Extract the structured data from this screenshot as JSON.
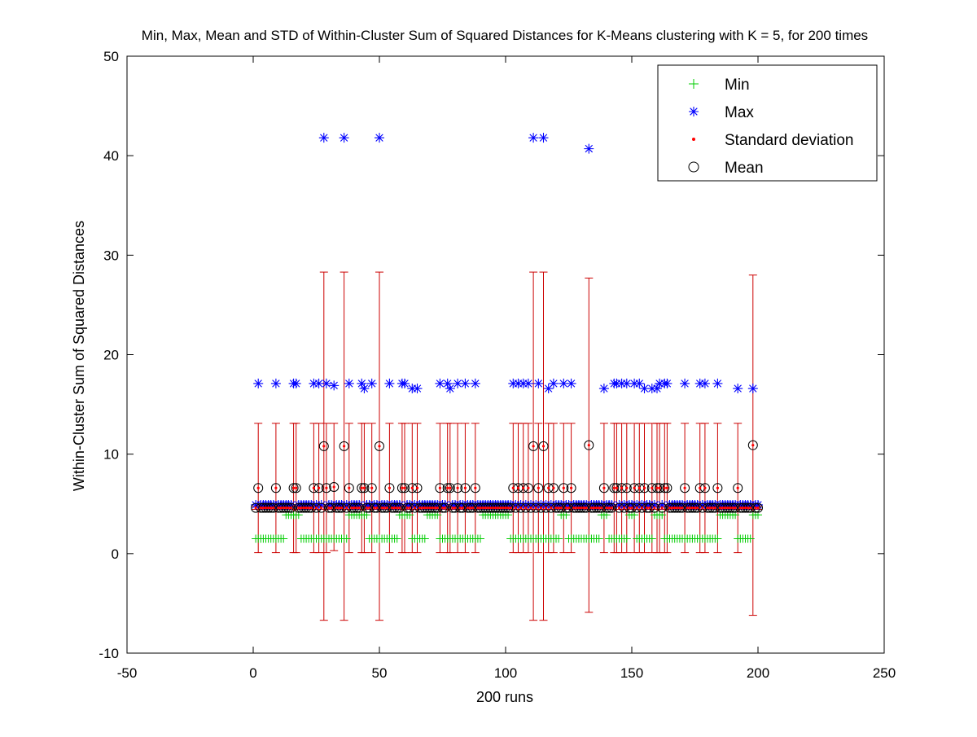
{
  "chart_data": {
    "type": "scatter",
    "title": "Min, Max, Mean and STD of Within-Cluster Sum of Squared Distances for K-Means clustering with K = 5, for 200 times",
    "xlabel": "200 runs",
    "ylabel": "Within-Cluster Sum of Squared Distances",
    "xlim": [
      -50,
      250
    ],
    "ylim": [
      -10,
      50
    ],
    "xticks": [
      -50,
      0,
      50,
      100,
      150,
      200,
      250
    ],
    "yticks": [
      -10,
      0,
      10,
      20,
      30,
      40,
      50
    ],
    "grid": false,
    "legend_position": "top-right",
    "colors": {
      "min": "#00cc00",
      "max": "#0000ff",
      "std": "#ff0000",
      "errorbar": "#cc0000",
      "mean": "#000000"
    },
    "series": [
      {
        "name": "Min",
        "marker": "plus",
        "color": "#00cc00"
      },
      {
        "name": "Max",
        "marker": "asterisk",
        "color": "#0000ff"
      },
      {
        "name": "Standard deviation",
        "marker": "dot",
        "color": "#ff0000"
      },
      {
        "name": "Mean",
        "marker": "circle",
        "color": "#000000"
      }
    ],
    "runs": {
      "count": 200,
      "baseline": {
        "min": 3.9,
        "max": 4.9,
        "mean": 4.6,
        "std": 0.15
      },
      "low_min_value": 1.5,
      "low_min_ranges": [
        [
          1,
          12
        ],
        [
          19,
          37
        ],
        [
          46,
          57
        ],
        [
          63,
          68
        ],
        [
          74,
          90
        ],
        [
          102,
          121
        ],
        [
          125,
          137
        ],
        [
          141,
          148
        ],
        [
          152,
          158
        ],
        [
          163,
          184
        ],
        [
          192,
          197
        ]
      ],
      "groups": {
        "A": {
          "max": 17.1,
          "mean": 6.6,
          "std": 6.5
        },
        "B": {
          "max": 41.8,
          "mean": 10.8,
          "std": 17.5
        },
        "C": {
          "max": 40.7,
          "mean": 10.9,
          "std": 16.8
        },
        "D": {
          "max": 16.6,
          "mean": 6.6,
          "std": 6.5
        },
        "E": {
          "max": 16.9,
          "mean": 6.7,
          "std": 6.4
        },
        "F": {
          "max": 16.6,
          "mean": 10.9,
          "std": 17.1
        }
      },
      "special": [
        [
          2,
          "A"
        ],
        [
          9,
          "A"
        ],
        [
          16,
          "A"
        ],
        [
          17,
          "A"
        ],
        [
          24,
          "A"
        ],
        [
          26,
          "A"
        ],
        [
          28,
          "B"
        ],
        [
          29,
          "A"
        ],
        [
          32,
          "E"
        ],
        [
          36,
          "B"
        ],
        [
          38,
          "A"
        ],
        [
          43,
          "A"
        ],
        [
          44,
          "D"
        ],
        [
          47,
          "A"
        ],
        [
          50,
          "B"
        ],
        [
          54,
          "A"
        ],
        [
          59,
          "A"
        ],
        [
          60,
          "A"
        ],
        [
          63,
          "D"
        ],
        [
          65,
          "D"
        ],
        [
          74,
          "A"
        ],
        [
          77,
          "A"
        ],
        [
          78,
          "D"
        ],
        [
          81,
          "A"
        ],
        [
          84,
          "A"
        ],
        [
          88,
          "A"
        ],
        [
          103,
          "A"
        ],
        [
          105,
          "A"
        ],
        [
          107,
          "A"
        ],
        [
          109,
          "A"
        ],
        [
          111,
          "B"
        ],
        [
          113,
          "A"
        ],
        [
          115,
          "B"
        ],
        [
          117,
          "D"
        ],
        [
          119,
          "A"
        ],
        [
          123,
          "A"
        ],
        [
          126,
          "A"
        ],
        [
          133,
          "C"
        ],
        [
          139,
          "D"
        ],
        [
          143,
          "A"
        ],
        [
          144,
          "A"
        ],
        [
          146,
          "A"
        ],
        [
          148,
          "A"
        ],
        [
          151,
          "A"
        ],
        [
          153,
          "A"
        ],
        [
          155,
          "D"
        ],
        [
          158,
          "D"
        ],
        [
          160,
          "D"
        ],
        [
          161,
          "A"
        ],
        [
          163,
          "A"
        ],
        [
          164,
          "A"
        ],
        [
          171,
          "A"
        ],
        [
          177,
          "A"
        ],
        [
          179,
          "A"
        ],
        [
          184,
          "A"
        ],
        [
          192,
          "D"
        ],
        [
          198,
          "F"
        ]
      ]
    },
    "legend": [
      "Min",
      "Max",
      "Standard deviation",
      "Mean"
    ]
  }
}
